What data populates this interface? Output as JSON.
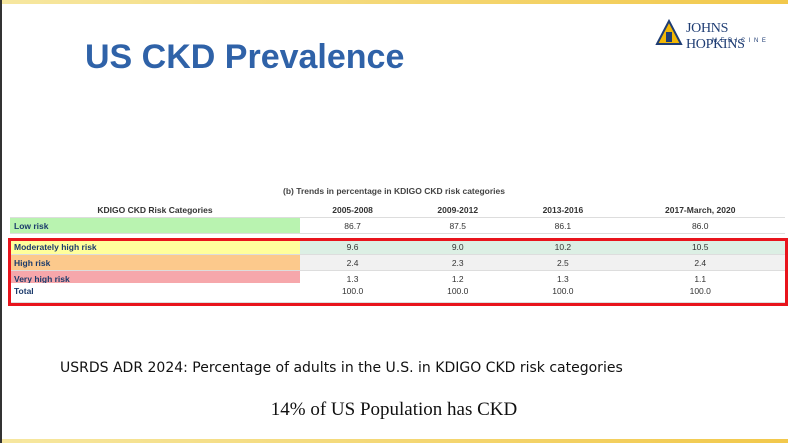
{
  "header": {
    "title": "US CKD Prevalence",
    "logo": {
      "name": "JOHNS HOPKINS",
      "sub": "MEDICINE"
    }
  },
  "table": {
    "caption": "(b) Trends in percentage in KDIGO CKD risk categories",
    "columns": [
      "KDIGO CKD Risk Categories",
      "2005-2008",
      "2009-2012",
      "2013-2016",
      "2017-March, 2020"
    ],
    "rows": [
      {
        "label": "Low risk",
        "values": [
          "86.7",
          "87.5",
          "86.1",
          "86.0"
        ]
      },
      {
        "label": "Moderately high risk",
        "values": [
          "9.6",
          "9.0",
          "10.2",
          "10.5"
        ]
      },
      {
        "label": "High risk",
        "values": [
          "2.4",
          "2.3",
          "2.5",
          "2.4"
        ]
      },
      {
        "label": "Very high risk",
        "values": [
          "1.3",
          "1.2",
          "1.3",
          "1.1"
        ]
      },
      {
        "label": "Total",
        "values": [
          "100.0",
          "100.0",
          "100.0",
          "100.0"
        ]
      }
    ]
  },
  "footer": {
    "source": "USRDS ADR 2024: Percentage of adults in the U.S. in KDIGO CKD risk categories",
    "headline": "14% of US Population has CKD"
  }
}
